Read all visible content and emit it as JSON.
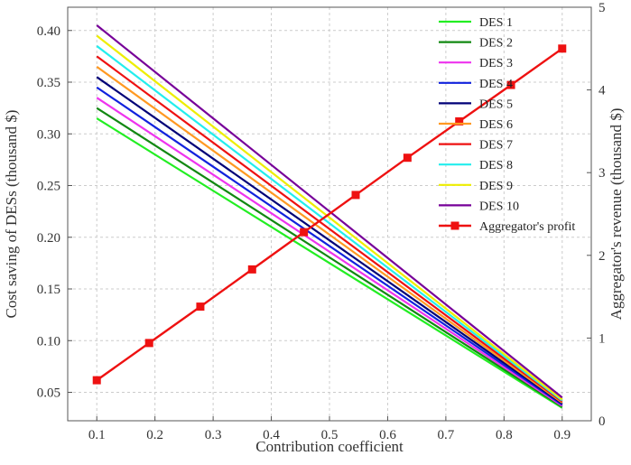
{
  "chart_data": {
    "type": "line",
    "xlabel": "Contribution coefficient",
    "ylabel_left": "Cost saving of DESs (thousand $)",
    "ylabel_right": "Aggregator's revenue (thousand $)",
    "x_ticks": [
      "0.1",
      "0.2",
      "0.3",
      "0.4",
      "0.5",
      "0.6",
      "0.7",
      "0.8",
      "0.9"
    ],
    "y_left_ticks": [
      "0.05",
      "0.10",
      "0.15",
      "0.20",
      "0.25",
      "0.30",
      "0.35",
      "0.40"
    ],
    "y_right_ticks": [
      "0",
      "1",
      "2",
      "3",
      "4",
      "5"
    ],
    "xlim": [
      0.05,
      0.95
    ],
    "ylim_left": [
      0.0225,
      0.4225
    ],
    "ylim_right": [
      0,
      5
    ],
    "grid": true,
    "legend_position": "top-right",
    "des_series": [
      {
        "name": "DES 1",
        "color": "#22ee22",
        "x": [
          0.1,
          0.9
        ],
        "y": [
          0.315,
          0.035
        ]
      },
      {
        "name": "DES 2",
        "color": "#118811",
        "x": [
          0.1,
          0.9
        ],
        "y": [
          0.325,
          0.036
        ]
      },
      {
        "name": "DES 3",
        "color": "#ee33ee",
        "x": [
          0.1,
          0.9
        ],
        "y": [
          0.335,
          0.037
        ]
      },
      {
        "name": "DES 4",
        "color": "#1122dd",
        "x": [
          0.1,
          0.9
        ],
        "y": [
          0.345,
          0.038
        ]
      },
      {
        "name": "DES 5",
        "color": "#000077",
        "x": [
          0.1,
          0.9
        ],
        "y": [
          0.355,
          0.039
        ]
      },
      {
        "name": "DES 6",
        "color": "#ff9922",
        "x": [
          0.1,
          0.9
        ],
        "y": [
          0.365,
          0.04
        ]
      },
      {
        "name": "DES 7",
        "color": "#ee1111",
        "x": [
          0.1,
          0.9
        ],
        "y": [
          0.375,
          0.041
        ]
      },
      {
        "name": "DES 8",
        "color": "#22eeee",
        "x": [
          0.1,
          0.9
        ],
        "y": [
          0.385,
          0.042
        ]
      },
      {
        "name": "DES 9",
        "color": "#eeee00",
        "x": [
          0.1,
          0.9
        ],
        "y": [
          0.395,
          0.043
        ]
      },
      {
        "name": "DES 10",
        "color": "#770099",
        "x": [
          0.1,
          0.9
        ],
        "y": [
          0.405,
          0.045
        ]
      }
    ],
    "profit_series": {
      "name": "Aggregator's profit",
      "color": "#ee1111",
      "axis": "right",
      "x": [
        0.1,
        0.19,
        0.278,
        0.367,
        0.456,
        0.545,
        0.634,
        0.723,
        0.812,
        0.9
      ],
      "y": [
        0.49,
        0.94,
        1.38,
        1.83,
        2.28,
        2.73,
        3.18,
        3.62,
        4.06,
        4.5
      ]
    }
  }
}
